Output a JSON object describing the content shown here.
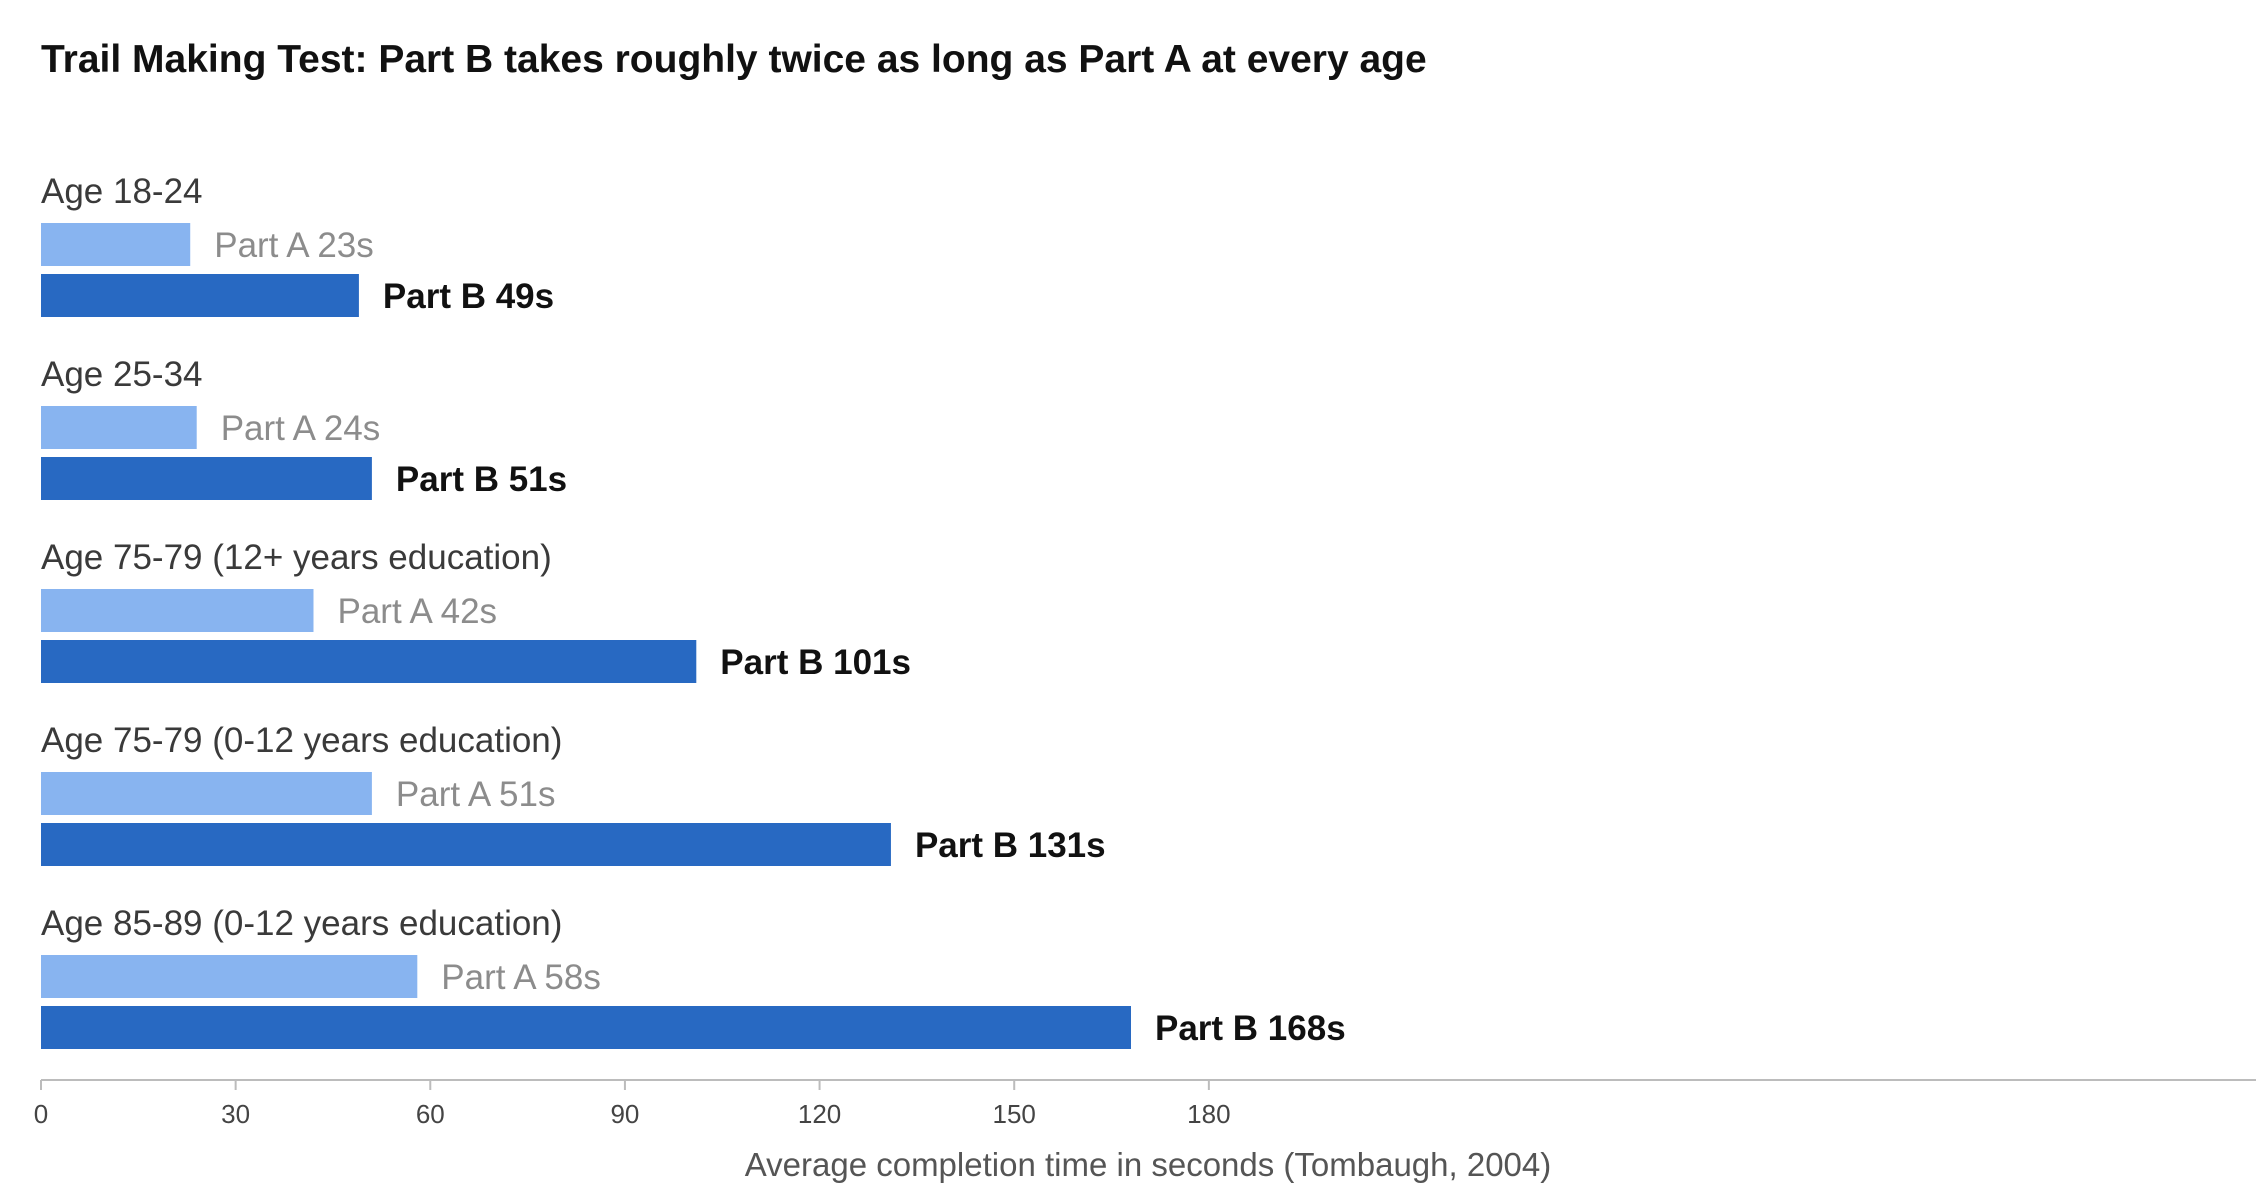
{
  "chart_data": {
    "type": "bar",
    "orientation": "horizontal",
    "title": "Trail Making Test: Part B takes roughly twice as long as Part A at every age",
    "xlabel": "Average completion time in seconds (Tombaugh, 2004)",
    "xlim": [
      0,
      205
    ],
    "xticks": [
      0,
      30,
      60,
      90,
      120,
      150,
      180
    ],
    "grid": false,
    "legend": "none",
    "categories": [
      "Age 18-24",
      "Age 25-34",
      "Age 75-79 (12+ years education)",
      "Age 75-79 (0-12 years education)",
      "Age 85-89 (0-12 years education)"
    ],
    "series": [
      {
        "name": "Part A",
        "color": "#88b4f0",
        "values": [
          23,
          24,
          42,
          51,
          58
        ]
      },
      {
        "name": "Part B",
        "color": "#2869c2",
        "values": [
          49,
          51,
          101,
          131,
          168
        ]
      }
    ],
    "value_suffix": "s"
  }
}
